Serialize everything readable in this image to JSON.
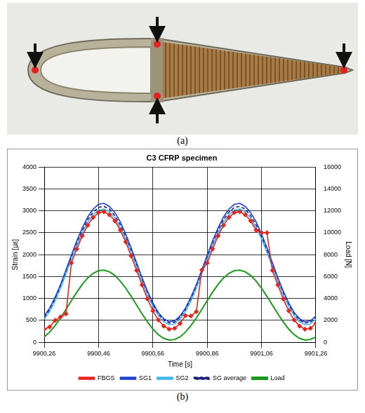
{
  "captions": [
    "(a)",
    "(b)"
  ],
  "chart_data": {
    "type": "line",
    "title": "C3 CFRP specimen",
    "xlabel": "Time [s]",
    "ylabel": "Strain [µε]",
    "y2label": "Load [N]",
    "x": [
      9900.26,
      9900.28,
      9900.3,
      9900.32,
      9900.34,
      9900.36,
      9900.38,
      9900.4,
      9900.42,
      9900.44,
      9900.46,
      9900.48,
      9900.5,
      9900.52,
      9900.54,
      9900.56,
      9900.58,
      9900.6,
      9900.62,
      9900.64,
      9900.66,
      9900.68,
      9900.7,
      9900.72,
      9900.74,
      9900.76,
      9900.78,
      9900.8,
      9900.82,
      9900.84,
      9900.86,
      9900.88,
      9900.9,
      9900.92,
      9900.94,
      9900.96,
      9900.98,
      9901.0,
      9901.02,
      9901.04,
      9901.06,
      9901.08,
      9901.1,
      9901.12,
      9901.14,
      9901.16,
      9901.18,
      9901.2,
      9901.22,
      9901.24,
      9901.26
    ],
    "series": [
      {
        "name": "FBGS",
        "color": "#e8251c",
        "marker": "diamond",
        "line_style": "solid",
        "values": [
          300,
          350,
          500,
          580,
          650,
          1810,
          2130,
          2430,
          2670,
          2850,
          2960,
          2980,
          2910,
          2770,
          2560,
          2290,
          1970,
          1640,
          1310,
          990,
          720,
          510,
          370,
          300,
          320,
          430,
          610,
          600,
          700,
          1650,
          1810,
          2130,
          2430,
          2670,
          2850,
          2960,
          2980,
          2910,
          2770,
          2560,
          2500,
          2500,
          1640,
          1310,
          990,
          720,
          510,
          370,
          300,
          320,
          430
        ]
      },
      {
        "name": "SG1",
        "color": "#1f3fd6",
        "marker": "none",
        "line_style": "solid",
        "values": [
          600,
          780,
          1030,
          1320,
          1650,
          1990,
          2320,
          2610,
          2860,
          3040,
          3150,
          3170,
          3100,
          2960,
          2750,
          2470,
          2160,
          1820,
          1480,
          1170,
          900,
          680,
          540,
          470,
          490,
          600,
          780,
          1030,
          1320,
          1650,
          1990,
          2320,
          2610,
          2860,
          3040,
          3150,
          3170,
          3100,
          2960,
          2750,
          2470,
          2160,
          1820,
          1480,
          1170,
          900,
          680,
          540,
          470,
          490,
          600
        ]
      },
      {
        "name": "SG2",
        "color": "#3fb8f0",
        "marker": "none",
        "line_style": "solid",
        "values": [
          530,
          700,
          940,
          1230,
          1560,
          1890,
          2210,
          2500,
          2740,
          2910,
          3020,
          3040,
          2980,
          2830,
          2620,
          2360,
          2050,
          1720,
          1390,
          1080,
          820,
          610,
          470,
          400,
          420,
          530,
          700,
          940,
          1230,
          1560,
          1890,
          2210,
          2500,
          2740,
          2910,
          3020,
          3040,
          2980,
          2830,
          2620,
          2360,
          2050,
          1720,
          1390,
          1080,
          820,
          610,
          470,
          400,
          420,
          530
        ]
      },
      {
        "name": "SG average",
        "color": "#1a237e",
        "marker": "none",
        "line_style": "dashed",
        "values": [
          570,
          750,
          990,
          1280,
          1600,
          1940,
          2260,
          2550,
          2800,
          2970,
          3080,
          3100,
          3040,
          2890,
          2680,
          2410,
          2100,
          1770,
          1440,
          1130,
          860,
          650,
          510,
          440,
          460,
          570,
          750,
          990,
          1280,
          1600,
          1940,
          2260,
          2550,
          2800,
          2970,
          3080,
          3100,
          3040,
          2890,
          2680,
          2410,
          2100,
          1770,
          1440,
          1130,
          860,
          650,
          510,
          440,
          460,
          570
        ]
      },
      {
        "name": "Load",
        "color": "#1a9a1a",
        "marker": "none",
        "line_style": "solid",
        "axis": "y2",
        "values": [
          500,
          930,
          1520,
          2220,
          3000,
          3800,
          4580,
          5280,
          5870,
          6300,
          6540,
          6590,
          6440,
          6100,
          5590,
          4940,
          4200,
          3400,
          2600,
          1860,
          1210,
          700,
          360,
          210,
          260,
          500,
          930,
          1520,
          2220,
          3000,
          3800,
          4580,
          5280,
          5870,
          6300,
          6540,
          6590,
          6440,
          6100,
          5590,
          4940,
          4200,
          3400,
          2600,
          1860,
          1210,
          700,
          360,
          210,
          260,
          500
        ]
      }
    ],
    "xlim": [
      9900.26,
      9901.26
    ],
    "xticks": [
      {
        "value": 9900.26,
        "label": "9900,26"
      },
      {
        "value": 9900.46,
        "label": "9900,46"
      },
      {
        "value": 9900.66,
        "label": "9900,66"
      },
      {
        "value": 9900.86,
        "label": "9900,86"
      },
      {
        "value": 9901.06,
        "label": "9901,06"
      },
      {
        "value": 9901.26,
        "label": "9901,26"
      }
    ],
    "ylim": [
      0,
      4000
    ],
    "yticks": [
      0,
      500,
      1000,
      1500,
      2000,
      2500,
      3000,
      3500,
      4000
    ],
    "y2lim": [
      0,
      16000
    ],
    "y2ticks": [
      0,
      2000,
      4000,
      6000,
      8000,
      10000,
      12000,
      14000,
      16000
    ],
    "grid": true,
    "legend": "bottom"
  }
}
